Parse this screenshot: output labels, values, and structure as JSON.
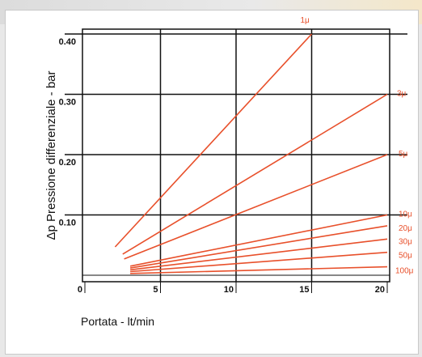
{
  "chart_data": {
    "type": "line",
    "xlabel": "Portata - lt/min",
    "ylabel": "Δp Pressione differenziale - bar",
    "xlim": [
      0,
      20
    ],
    "ylim": [
      0,
      0.4
    ],
    "x_ticks": [
      "0",
      "5",
      "10",
      "15",
      "20"
    ],
    "y_ticks": [
      "0.10",
      "0.20",
      "0.30",
      "0.40"
    ],
    "grid": true,
    "line_color": "#e8502b",
    "series": [
      {
        "name": "1μ",
        "x": [
          2.0,
          15.0
        ],
        "y": [
          0.047,
          0.4
        ]
      },
      {
        "name": "3μ",
        "x": [
          2.5,
          20.0
        ],
        "y": [
          0.035,
          0.3
        ]
      },
      {
        "name": "5μ",
        "x": [
          2.6,
          20.0
        ],
        "y": [
          0.027,
          0.2
        ]
      },
      {
        "name": "10μ",
        "x": [
          3.0,
          20.0
        ],
        "y": [
          0.015,
          0.1
        ]
      },
      {
        "name": "20μ",
        "x": [
          3.0,
          20.0
        ],
        "y": [
          0.012,
          0.082
        ]
      },
      {
        "name": "30μ",
        "x": [
          3.0,
          20.0
        ],
        "y": [
          0.009,
          0.06
        ]
      },
      {
        "name": "50μ",
        "x": [
          3.0,
          20.0
        ],
        "y": [
          0.006,
          0.038
        ]
      },
      {
        "name": "100μ",
        "x": [
          3.0,
          20.0
        ],
        "y": [
          0.003,
          0.014
        ]
      }
    ]
  }
}
